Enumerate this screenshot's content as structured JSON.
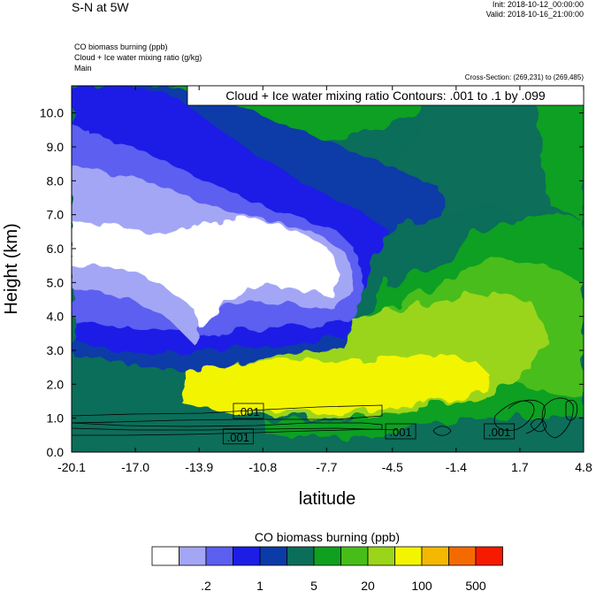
{
  "header": {
    "title": "S-N at 5W",
    "init": "Init: 2018-10-12_00:00:00",
    "valid": "Valid: 2018-10-16_21:00:00",
    "fields": [
      "CO biomass burning   (ppb)",
      "Cloud + Ice water mixing ratio   (g/kg)",
      "Main"
    ],
    "cross_section": "Cross-Section: (269,231) to (269,485)"
  },
  "chart_data": {
    "type": "heatmap",
    "contour_title": "Cloud + Ice water mixing ratio Contours: .001 to .1 by .099",
    "xlabel": "latitude",
    "ylabel": "Height (km)",
    "xlim": [
      -20.1,
      4.8
    ],
    "ylim": [
      0.0,
      10.8
    ],
    "x_ticks": [
      "-20.1",
      "-17.0",
      "-13.9",
      "-10.8",
      "-7.7",
      "-4.5",
      "-1.4",
      "1.7",
      "4.8"
    ],
    "y_ticks": [
      "0.0",
      "1.0",
      "2.0",
      "3.0",
      "4.0",
      "5.0",
      "6.0",
      "7.0",
      "8.0",
      "9.0",
      "10.0"
    ],
    "contour_labels": [
      {
        "text": ".001",
        "x": -11.5,
        "y": 1.2
      },
      {
        "text": ".001",
        "x": -12.0,
        "y": 0.45
      },
      {
        "text": ".001",
        "x": -4.1,
        "y": 0.6
      },
      {
        "text": ".001",
        "x": 0.7,
        "y": 0.6
      }
    ],
    "colorbar": {
      "title": "CO biomass burning  (ppb)",
      "colors": [
        "#ffffff",
        "#a3a6f5",
        "#5c5ff0",
        "#1c1ee6",
        "#0a3ba8",
        "#0a6e5a",
        "#0fa020",
        "#48bd1a",
        "#9ad51a",
        "#f3f500",
        "#f5b800",
        "#f56a00",
        "#f51a00"
      ],
      "tick_labels": [
        ".2",
        "1",
        "5",
        "20",
        "100",
        "500"
      ]
    }
  }
}
